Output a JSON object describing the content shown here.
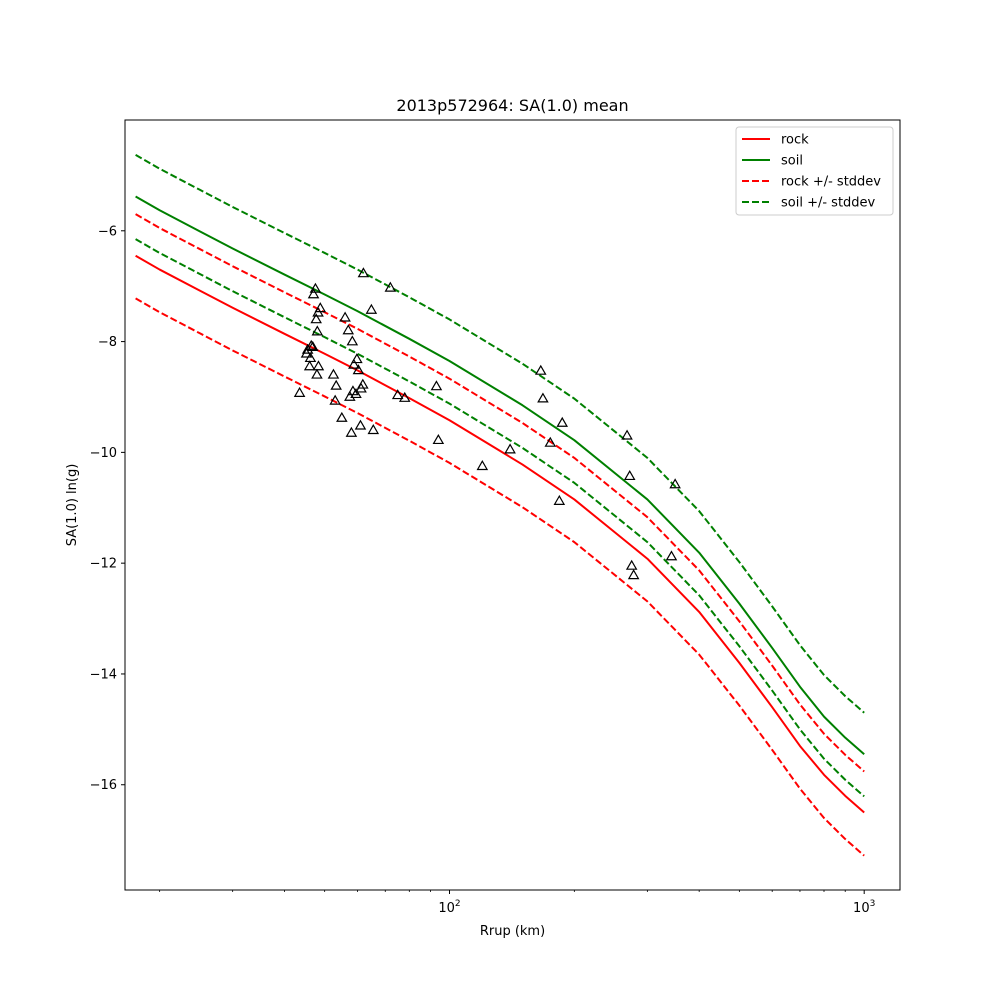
{
  "chart_data": {
    "type": "line",
    "title": "2013p572964: SA(1.0) mean",
    "xlabel": "Rrup (km)",
    "ylabel": "SA(1.0) ln(g)",
    "xscale": "log",
    "xlim": [
      16.5,
      1220
    ],
    "ylim": [
      -17.9,
      -4.0
    ],
    "x_ticks": [
      {
        "value": 100,
        "base": "10",
        "exp": "2"
      },
      {
        "value": 1000,
        "base": "10",
        "exp": "3"
      }
    ],
    "y_ticks": [
      {
        "value": -16,
        "label": "−16"
      },
      {
        "value": -14,
        "label": "−14"
      },
      {
        "value": -12,
        "label": "−12"
      },
      {
        "value": -10,
        "label": "−10"
      },
      {
        "value": -8,
        "label": "−8"
      },
      {
        "value": -6,
        "label": "−6"
      }
    ],
    "grid": false,
    "legend_position": "top-right",
    "colors": {
      "rock": "#ff0000",
      "soil": "#008000",
      "points": "#000000"
    },
    "x": [
      17.5,
      20,
      25,
      30,
      40,
      50,
      60,
      80,
      100,
      150,
      200,
      300,
      400,
      500,
      600,
      700,
      800,
      900,
      1000
    ],
    "series": [
      {
        "name": "rock",
        "style": "solid",
        "color": "#ff0000",
        "values": [
          -6.45,
          -6.7,
          -7.08,
          -7.39,
          -7.86,
          -8.22,
          -8.52,
          -9.02,
          -9.42,
          -10.22,
          -10.85,
          -11.92,
          -12.88,
          -13.8,
          -14.6,
          -15.3,
          -15.82,
          -16.2,
          -16.5
        ]
      },
      {
        "name": "soil",
        "style": "solid",
        "color": "#008000",
        "values": [
          -5.38,
          -5.63,
          -6.01,
          -6.32,
          -6.79,
          -7.15,
          -7.45,
          -7.95,
          -8.35,
          -9.15,
          -9.78,
          -10.85,
          -11.81,
          -12.73,
          -13.53,
          -14.23,
          -14.77,
          -15.15,
          -15.45
        ]
      },
      {
        "name": "rock +/- stddev",
        "style": "dashed",
        "color": "#ff0000",
        "values": [
          -5.7,
          -5.95,
          -6.33,
          -6.64,
          -7.11,
          -7.47,
          -7.77,
          -8.27,
          -8.67,
          -9.47,
          -10.1,
          -11.17,
          -12.13,
          -13.05,
          -13.85,
          -14.55,
          -15.08,
          -15.46,
          -15.76
        ]
      },
      {
        "name": "rock +/- stddev",
        "style": "dashed",
        "color": "#ff0000",
        "legend": false,
        "values": [
          -7.22,
          -7.47,
          -7.85,
          -8.16,
          -8.63,
          -8.99,
          -9.29,
          -9.79,
          -10.19,
          -10.99,
          -11.62,
          -12.69,
          -13.65,
          -14.57,
          -15.37,
          -16.07,
          -16.6,
          -16.98,
          -17.28
        ]
      },
      {
        "name": "soil +/- stddev",
        "style": "dashed",
        "color": "#008000",
        "values": [
          -4.63,
          -4.88,
          -5.26,
          -5.57,
          -6.04,
          -6.4,
          -6.7,
          -7.2,
          -7.6,
          -8.4,
          -9.03,
          -10.1,
          -11.06,
          -11.98,
          -12.78,
          -13.48,
          -14.02,
          -14.4,
          -14.7
        ]
      },
      {
        "name": "soil +/- stddev",
        "style": "dashed",
        "color": "#008000",
        "legend": false,
        "values": [
          -6.15,
          -6.4,
          -6.78,
          -7.09,
          -7.56,
          -7.92,
          -8.22,
          -8.72,
          -9.12,
          -9.92,
          -10.55,
          -11.62,
          -12.58,
          -13.5,
          -14.3,
          -15.0,
          -15.53,
          -15.91,
          -16.21
        ]
      }
    ],
    "scatter": {
      "marker": "triangle-open",
      "points": [
        [
          43.5,
          -8.93
        ],
        [
          45.2,
          -8.22
        ],
        [
          45.5,
          -8.15
        ],
        [
          46.0,
          -8.45
        ],
        [
          46.2,
          -8.3
        ],
        [
          46.4,
          -8.08
        ],
        [
          46.8,
          -8.1
        ],
        [
          47.0,
          -7.15
        ],
        [
          47.5,
          -7.05
        ],
        [
          47.7,
          -7.6
        ],
        [
          47.9,
          -8.6
        ],
        [
          48.0,
          -7.82
        ],
        [
          48.2,
          -7.48
        ],
        [
          48.3,
          -8.45
        ],
        [
          48.8,
          -7.4
        ],
        [
          52.5,
          -8.6
        ],
        [
          53.0,
          -9.07
        ],
        [
          53.3,
          -8.8
        ],
        [
          55.0,
          -9.38
        ],
        [
          56.0,
          -7.57
        ],
        [
          57.0,
          -7.8
        ],
        [
          57.5,
          -9.0
        ],
        [
          58.0,
          -9.65
        ],
        [
          58.3,
          -8.0
        ],
        [
          58.5,
          -8.9
        ],
        [
          58.8,
          -8.42
        ],
        [
          59.5,
          -8.95
        ],
        [
          59.8,
          -8.32
        ],
        [
          60.3,
          -8.52
        ],
        [
          61.0,
          -9.52
        ],
        [
          61.2,
          -8.85
        ],
        [
          61.8,
          -8.78
        ],
        [
          62.0,
          -6.77
        ],
        [
          64.8,
          -7.43
        ],
        [
          65.5,
          -9.6
        ],
        [
          72.0,
          -7.03
        ],
        [
          75.0,
          -8.97
        ],
        [
          78.0,
          -9.02
        ],
        [
          93.0,
          -8.81
        ],
        [
          94.0,
          -9.78
        ],
        [
          120.0,
          -10.25
        ],
        [
          140.0,
          -9.95
        ],
        [
          166.0,
          -8.53
        ],
        [
          168.0,
          -9.03
        ],
        [
          175.0,
          -9.83
        ],
        [
          184.0,
          -10.88
        ],
        [
          187.0,
          -9.47
        ],
        [
          268.0,
          -9.7
        ],
        [
          272.0,
          -10.43
        ],
        [
          275.0,
          -12.05
        ],
        [
          278.0,
          -12.22
        ],
        [
          343.0,
          -11.88
        ],
        [
          350.0,
          -10.58
        ]
      ]
    },
    "legend": [
      {
        "label": "rock",
        "color": "#ff0000",
        "style": "solid"
      },
      {
        "label": "soil",
        "color": "#008000",
        "style": "solid"
      },
      {
        "label": "rock +/- stddev",
        "color": "#ff0000",
        "style": "dashed"
      },
      {
        "label": "soil +/- stddev",
        "color": "#008000",
        "style": "dashed"
      }
    ]
  }
}
